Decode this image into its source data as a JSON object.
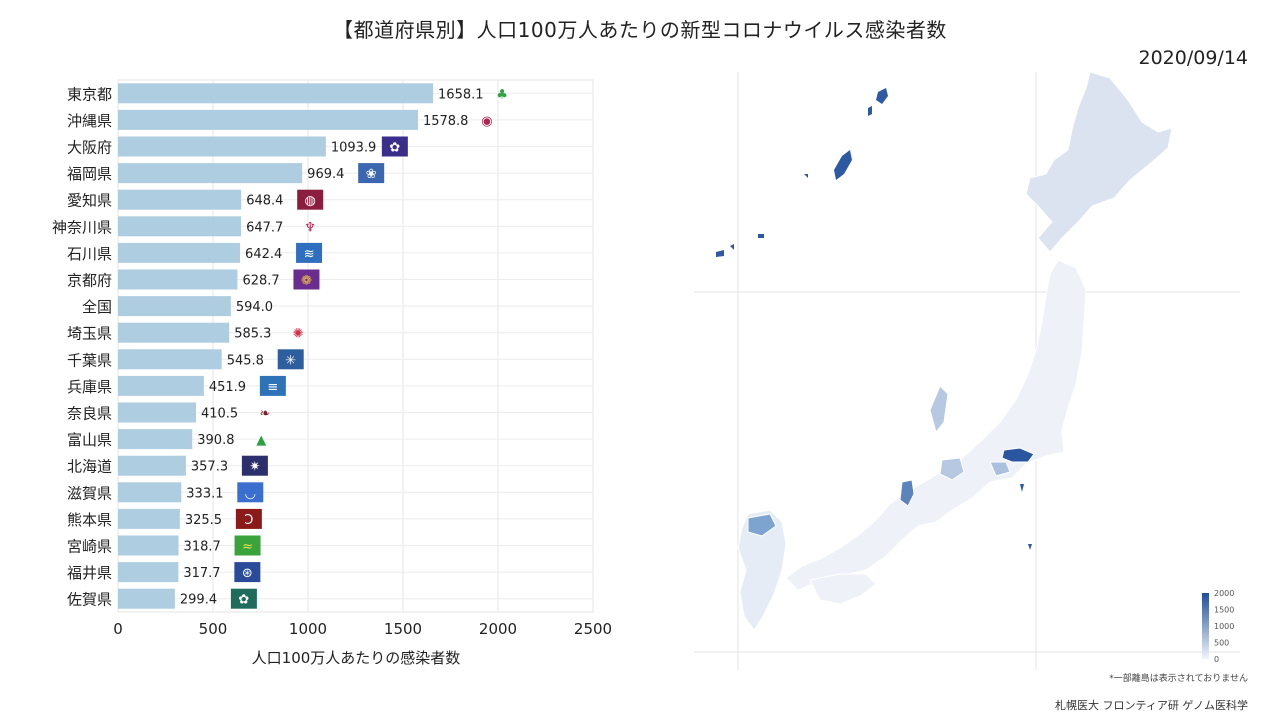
{
  "title": "【都道府県別】人口100万人あたりの新型コロナウイルス感染者数",
  "date": "2020/09/14",
  "chart_data": {
    "type": "bar",
    "orientation": "horizontal",
    "categories": [
      "東京都",
      "沖縄県",
      "大阪府",
      "福岡県",
      "愛知県",
      "神奈川県",
      "石川県",
      "京都府",
      "全国",
      "埼玉県",
      "千葉県",
      "兵庫県",
      "奈良県",
      "富山県",
      "北海道",
      "滋賀県",
      "熊本県",
      "宮崎県",
      "福井県",
      "佐賀県"
    ],
    "values": [
      1658.1,
      1578.8,
      1093.9,
      969.4,
      648.4,
      647.7,
      642.4,
      628.7,
      594.0,
      585.3,
      545.8,
      451.9,
      410.5,
      390.8,
      357.3,
      333.1,
      325.5,
      318.7,
      317.7,
      299.4
    ],
    "value_labels": [
      "1658.1",
      "1578.8",
      "1093.9",
      "969.4",
      "648.4",
      "647.7",
      "642.4",
      "628.7",
      "594.0",
      "585.3",
      "545.8",
      "451.9",
      "410.5",
      "390.8",
      "357.3",
      "333.1",
      "325.5",
      "318.7",
      "317.7",
      "299.4"
    ],
    "xlabel": "人口100万人あたりの感染者数",
    "ylabel": "",
    "xlim": [
      0,
      2500
    ],
    "x_ticks": [
      "0",
      "500",
      "1000",
      "1500",
      "2000",
      "2500"
    ],
    "grid": true,
    "bar_color": "#aecde1"
  },
  "map": {
    "legend_ticks": [
      "2000",
      "1500",
      "1000",
      "500",
      "0"
    ],
    "scale_colors": [
      "#f2f5fa",
      "#1f4e99"
    ],
    "note": "*一部離島は表示されておりません"
  },
  "credit": "札幌医大 フロンティア研 ゲノム医科学"
}
